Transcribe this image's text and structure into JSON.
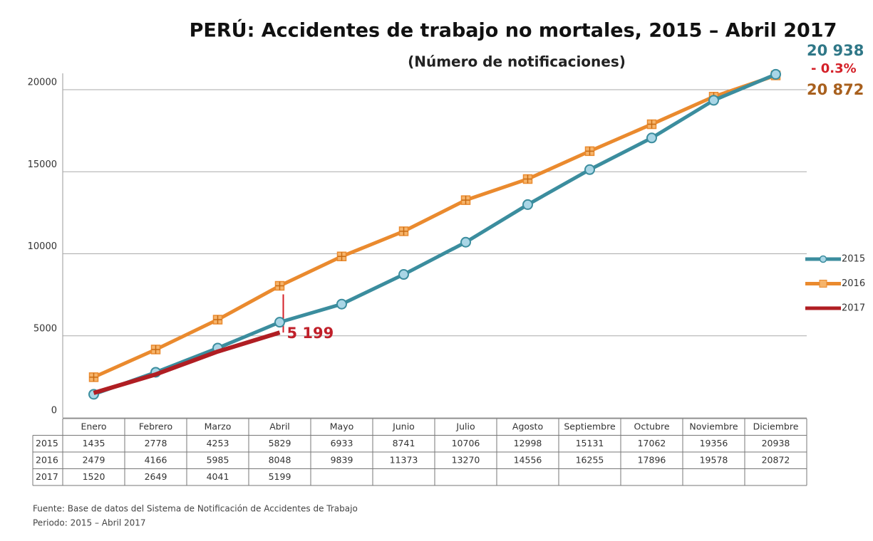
{
  "chart_data": {
    "type": "line",
    "title": "PERÚ: Accidentes de trabajo no mortales, 2015 – Abril 2017",
    "subtitle": "(Número de notificaciones)",
    "categories": [
      "Enero",
      "Febrero",
      "Marzo",
      "Abril",
      "Mayo",
      "Junio",
      "Julio",
      "Agosto",
      "Septiembre",
      "Octubre",
      "Noviembre",
      "Diciembre"
    ],
    "series": [
      {
        "name": "2015",
        "color": "#3b8d9e",
        "values": [
          1435,
          2778,
          4253,
          5829,
          6933,
          8741,
          10706,
          12998,
          15131,
          17062,
          19356,
          20938
        ],
        "value_labels": [
          null,
          null,
          null,
          null,
          null,
          null,
          null,
          null,
          null,
          null,
          null,
          "20 938"
        ]
      },
      {
        "name": "2016",
        "color": "#ea8a2e",
        "values": [
          2479,
          4166,
          5985,
          8048,
          9839,
          11373,
          13270,
          14556,
          16255,
          17896,
          19578,
          20872
        ],
        "value_labels": [
          null,
          null,
          null,
          null,
          null,
          null,
          null,
          null,
          null,
          null,
          null,
          "20 872"
        ]
      },
      {
        "name": "2017",
        "color": "#b01e23",
        "values": [
          1520,
          2649,
          4041,
          5199,
          null,
          null,
          null,
          null,
          null,
          null,
          null,
          null
        ],
        "value_labels": [
          null,
          null,
          null,
          "5 199",
          null,
          null,
          null,
          null,
          null,
          null,
          null,
          null
        ]
      }
    ],
    "annotations": [
      "- 0.3%"
    ],
    "ylim": [
      0,
      21000
    ],
    "yticks": [
      0,
      5000,
      10000,
      15000,
      20000
    ],
    "grid": true,
    "legend": "right",
    "source": "Fuente: Base de datos del Sistema de Notificación de Accidentes de Trabajo",
    "period": "Periodo: 2015 – Abril 2017"
  }
}
